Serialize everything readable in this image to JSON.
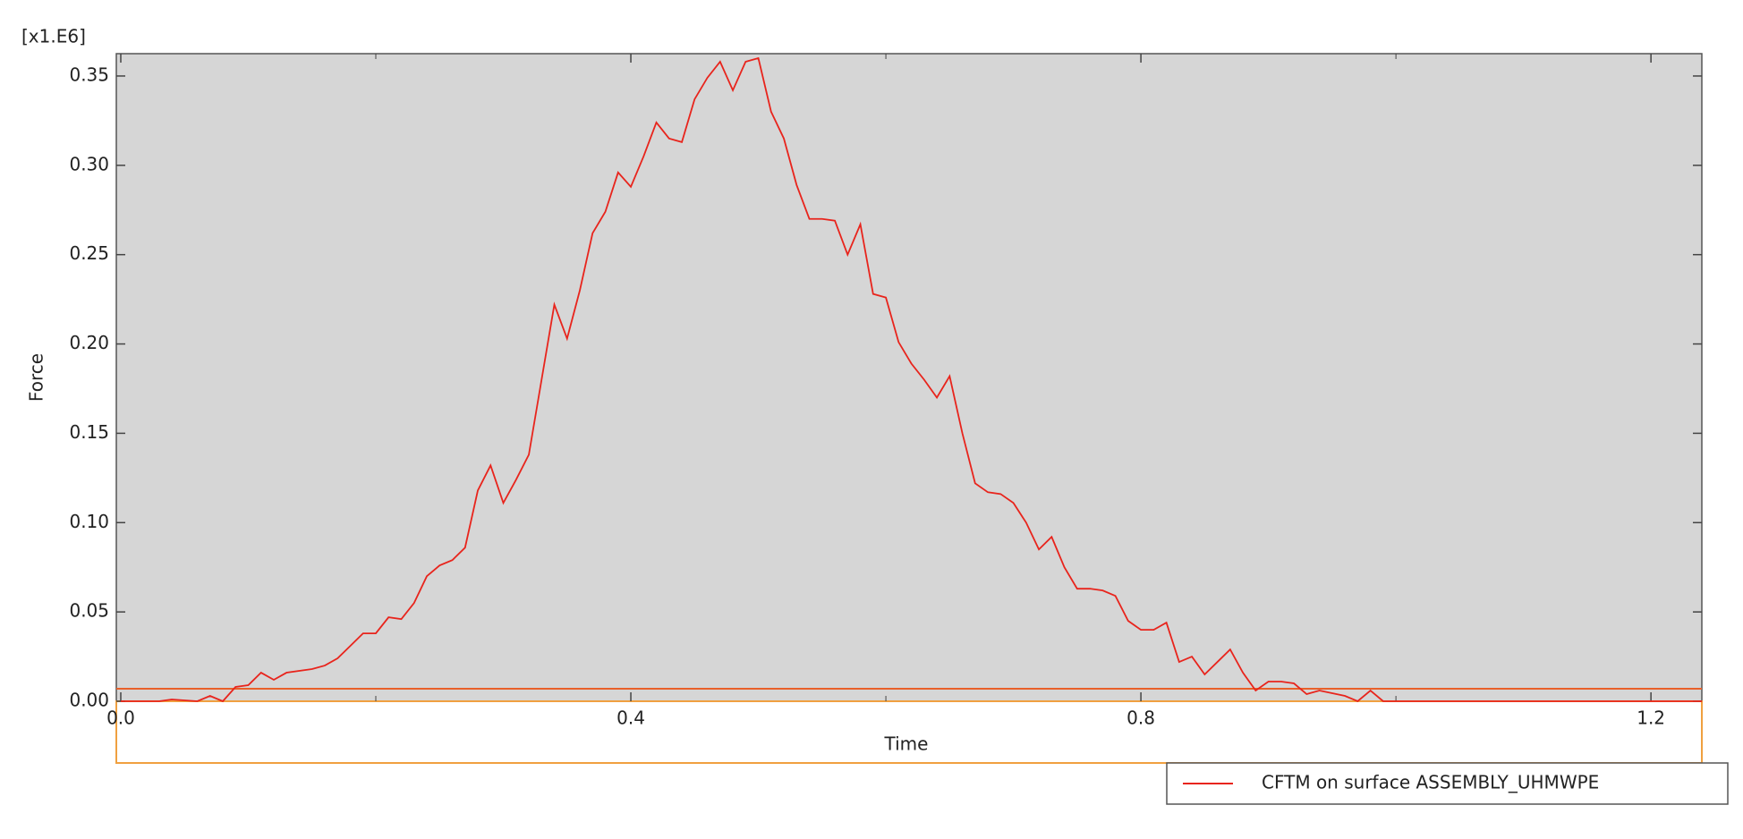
{
  "chart_data": {
    "type": "line",
    "y_unit": "[x1.E6]",
    "xlabel": "Time",
    "ylabel": "Force",
    "x": [
      0.0,
      0.03,
      0.04,
      0.06,
      0.07,
      0.08,
      0.09,
      0.1,
      0.11,
      0.12,
      0.13,
      0.15,
      0.16,
      0.17,
      0.18,
      0.19,
      0.2,
      0.21,
      0.22,
      0.23,
      0.24,
      0.25,
      0.26,
      0.27,
      0.28,
      0.29,
      0.3,
      0.31,
      0.32,
      0.33,
      0.34,
      0.35,
      0.36,
      0.37,
      0.38,
      0.39,
      0.4,
      0.41,
      0.42,
      0.43,
      0.44,
      0.45,
      0.46,
      0.47,
      0.48,
      0.49,
      0.5,
      0.51,
      0.52,
      0.53,
      0.54,
      0.55,
      0.56,
      0.57,
      0.58,
      0.59,
      0.6,
      0.61,
      0.62,
      0.63,
      0.64,
      0.65,
      0.66,
      0.67,
      0.68,
      0.69,
      0.7,
      0.71,
      0.72,
      0.73,
      0.74,
      0.75,
      0.76,
      0.77,
      0.78,
      0.79,
      0.8,
      0.81,
      0.82,
      0.83,
      0.84,
      0.85,
      0.86,
      0.87,
      0.88,
      0.89,
      0.9,
      0.91,
      0.92,
      0.93,
      0.94,
      0.96,
      0.97,
      0.98,
      0.99,
      1.24
    ],
    "series": [
      {
        "name": "CFTM on surface ASSEMBLY_UHMWPE",
        "color": "#e8241c",
        "values": [
          0,
          0,
          0.001,
          0,
          0.003,
          0,
          0.008,
          0.009,
          0.016,
          0.012,
          0.016,
          0.018,
          0.02,
          0.024,
          0.031,
          0.038,
          0.038,
          0.047,
          0.046,
          0.055,
          0.07,
          0.076,
          0.079,
          0.086,
          0.118,
          0.132,
          0.111,
          0.124,
          0.138,
          0.18,
          0.222,
          0.203,
          0.23,
          0.262,
          0.274,
          0.296,
          0.288,
          0.305,
          0.324,
          0.315,
          0.313,
          0.337,
          0.349,
          0.358,
          0.342,
          0.358,
          0.36,
          0.33,
          0.315,
          0.289,
          0.27,
          0.27,
          0.269,
          0.25,
          0.267,
          0.228,
          0.226,
          0.201,
          0.189,
          0.18,
          0.17,
          0.182,
          0.15,
          0.122,
          0.117,
          0.116,
          0.111,
          0.1,
          0.085,
          0.092,
          0.075,
          0.063,
          0.063,
          0.062,
          0.059,
          0.045,
          0.04,
          0.04,
          0.044,
          0.022,
          0.025,
          0.015,
          0.022,
          0.029,
          0.016,
          0.006,
          0.011,
          0.011,
          0.01,
          0.004,
          0.006,
          0.003,
          0,
          0.006,
          0,
          0
        ]
      }
    ],
    "xlim": [
      -0.0035,
      1.2399
    ],
    "xticks": [
      {
        "value": 0,
        "label": "0.0"
      },
      0.4,
      0.8,
      1.2
    ],
    "ylim": [
      0,
      0.3625
    ],
    "yticks": [
      {
        "value": 0,
        "label": "0.00"
      },
      {
        "value": 0.05,
        "label": "0.05"
      },
      {
        "value": 0.1,
        "label": "0.10"
      },
      {
        "value": 0.15,
        "label": "0.15"
      },
      {
        "value": 0.2,
        "label": "0.20"
      },
      {
        "value": 0.25,
        "label": "0.25"
      },
      {
        "value": 0.3,
        "label": "0.30"
      },
      {
        "value": 0.35,
        "label": "0.35"
      }
    ],
    "background": "#d6d6d6"
  }
}
